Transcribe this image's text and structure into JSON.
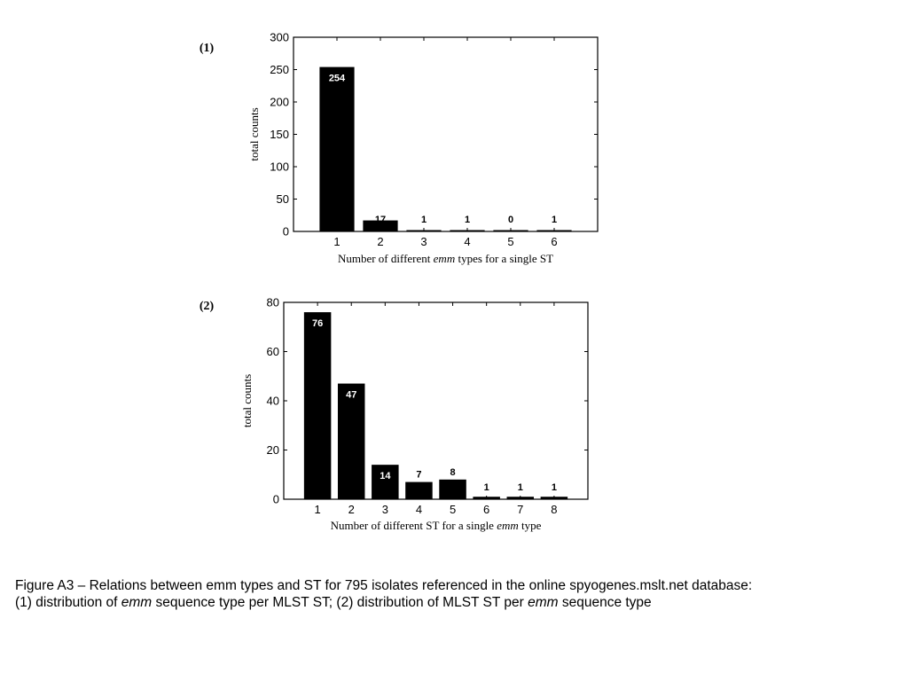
{
  "chart_data": [
    {
      "type": "bar",
      "panel_label": "(1)",
      "categories": [
        "1",
        "2",
        "3",
        "4",
        "5",
        "6"
      ],
      "values": [
        254,
        17,
        1,
        1,
        0,
        1
      ],
      "data_labels": [
        "254",
        "17",
        "1",
        "1",
        "0",
        "1"
      ],
      "xlabel_parts": [
        "Number of different ",
        "emm",
        " types for a single ST"
      ],
      "ylabel": "total counts",
      "ylim": [
        0,
        300
      ],
      "yticks": [
        "0",
        "50",
        "100",
        "150",
        "200",
        "250",
        "300"
      ],
      "grid": false,
      "bar_color": "#000000"
    },
    {
      "type": "bar",
      "panel_label": "(2)",
      "categories": [
        "1",
        "2",
        "3",
        "4",
        "5",
        "6",
        "7",
        "8"
      ],
      "values": [
        76,
        47,
        14,
        7,
        8,
        1,
        1,
        1
      ],
      "data_labels": [
        "76",
        "47",
        "14",
        "7",
        "8",
        "1",
        "1",
        "1"
      ],
      "xlabel_parts": [
        "Number of different ST for a single ",
        "emm",
        " type"
      ],
      "ylabel": "total counts",
      "ylim": [
        0,
        80
      ],
      "yticks": [
        "0",
        "20",
        "40",
        "60",
        "80"
      ],
      "grid": false,
      "bar_color": "#000000"
    }
  ],
  "caption": {
    "line1": "Figure A3 – Relations between emm types and ST for 795 isolates referenced in the online spyogenes.mslt.net database:",
    "line2_a": "(1) distribution of ",
    "line2_b": "emm",
    "line2_c": " sequence type per MLST ST; (2) distribution of MLST ST per ",
    "line2_d": "emm",
    "line2_e": " sequence type"
  }
}
